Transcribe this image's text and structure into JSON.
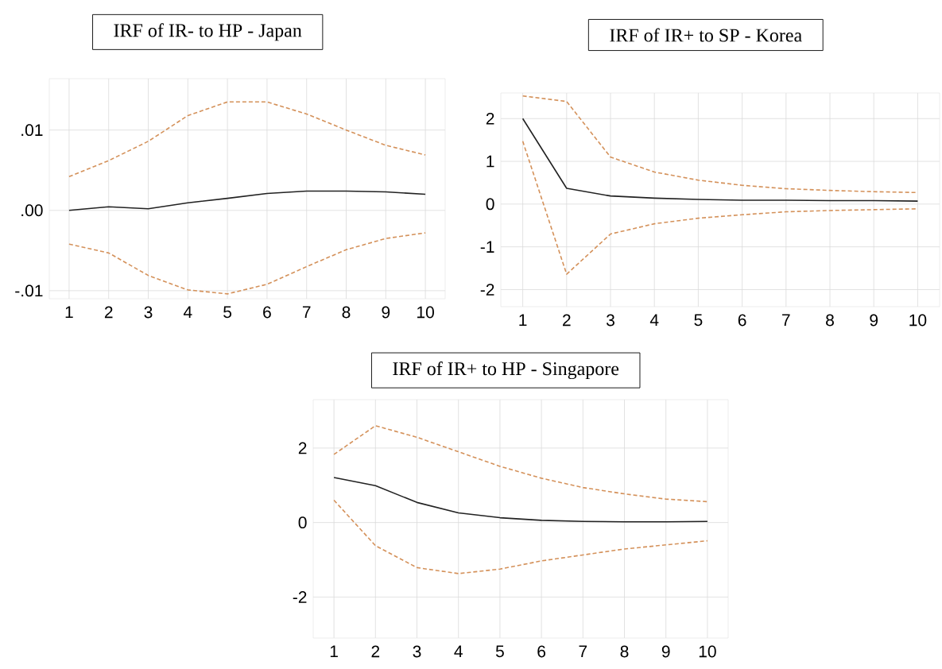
{
  "chart_data": [
    {
      "type": "line",
      "title": "IRF of IR- to HP - Japan",
      "x": [
        1,
        2,
        3,
        4,
        5,
        6,
        7,
        8,
        9,
        10
      ],
      "xlim": [
        0.5,
        10.5
      ],
      "xticks": [
        1,
        2,
        3,
        4,
        5,
        6,
        7,
        8,
        9,
        10
      ],
      "ylim": [
        -0.011,
        0.0164
      ],
      "yticks": [
        {
          "value": -0.01,
          "label": "-.01"
        },
        {
          "value": 0,
          "label": ".00"
        },
        {
          "value": 0.01,
          "label": ".01"
        }
      ],
      "grid": true,
      "series": [
        {
          "color": "#d4915a",
          "line_style": "dashed",
          "values": [
            0.0042,
            0.0062,
            0.0086,
            0.0118,
            0.0135,
            0.0135,
            0.012,
            0.01,
            0.0081,
            0.0069
          ]
        },
        {
          "color": "#222222",
          "line_style": "solid",
          "values": [
            0.0,
            0.00045,
            0.0002,
            0.00094,
            0.0015,
            0.0021,
            0.0024,
            0.0024,
            0.0023,
            0.002
          ]
        },
        {
          "color": "#d4915a",
          "line_style": "dashed",
          "values": [
            -0.0042,
            -0.0053,
            -0.0081,
            -0.0099,
            -0.0104,
            -0.0092,
            -0.007,
            -0.0049,
            -0.0035,
            -0.0028
          ]
        }
      ]
    },
    {
      "type": "line",
      "title": "IRF of IR+ to SP - Korea",
      "x": [
        1,
        2,
        3,
        4,
        5,
        6,
        7,
        8,
        9,
        10
      ],
      "xlim": [
        0.5,
        10.5
      ],
      "xticks": [
        1,
        2,
        3,
        4,
        5,
        6,
        7,
        8,
        9,
        10
      ],
      "ylim": [
        -2.4,
        2.6
      ],
      "yticks": [
        -2,
        -1,
        0,
        1,
        2
      ],
      "grid": true,
      "series": [
        {
          "color": "#d4915a",
          "line_style": "dashed",
          "values": [
            2.53,
            2.4,
            1.1,
            0.75,
            0.56,
            0.44,
            0.36,
            0.32,
            0.29,
            0.27
          ]
        },
        {
          "color": "#222222",
          "line_style": "solid",
          "values": [
            2.0,
            0.37,
            0.19,
            0.14,
            0.11,
            0.09,
            0.09,
            0.08,
            0.08,
            0.07
          ]
        },
        {
          "color": "#d4915a",
          "line_style": "dashed",
          "values": [
            1.47,
            -1.64,
            -0.7,
            -0.46,
            -0.33,
            -0.25,
            -0.18,
            -0.15,
            -0.13,
            -0.11
          ]
        }
      ]
    },
    {
      "type": "line",
      "title": "IRF of IR+ to HP - Singapore",
      "x": [
        1,
        2,
        3,
        4,
        5,
        6,
        7,
        8,
        9,
        10
      ],
      "xlim": [
        0.5,
        10.5
      ],
      "xticks": [
        1,
        2,
        3,
        4,
        5,
        6,
        7,
        8,
        9,
        10
      ],
      "ylim": [
        -3.1,
        3.3
      ],
      "yticks": [
        -2,
        0,
        2
      ],
      "grid": true,
      "series": [
        {
          "color": "#d4915a",
          "line_style": "dashed",
          "values": [
            1.83,
            2.6,
            2.29,
            1.9,
            1.51,
            1.19,
            0.94,
            0.77,
            0.63,
            0.56
          ]
        },
        {
          "color": "#222222",
          "line_style": "solid",
          "values": [
            1.21,
            0.99,
            0.54,
            0.26,
            0.13,
            0.06,
            0.03,
            0.02,
            0.02,
            0.03
          ]
        },
        {
          "color": "#d4915a",
          "line_style": "dashed",
          "values": [
            0.6,
            -0.62,
            -1.21,
            -1.37,
            -1.25,
            -1.03,
            -0.87,
            -0.71,
            -0.6,
            -0.49
          ]
        }
      ]
    }
  ]
}
